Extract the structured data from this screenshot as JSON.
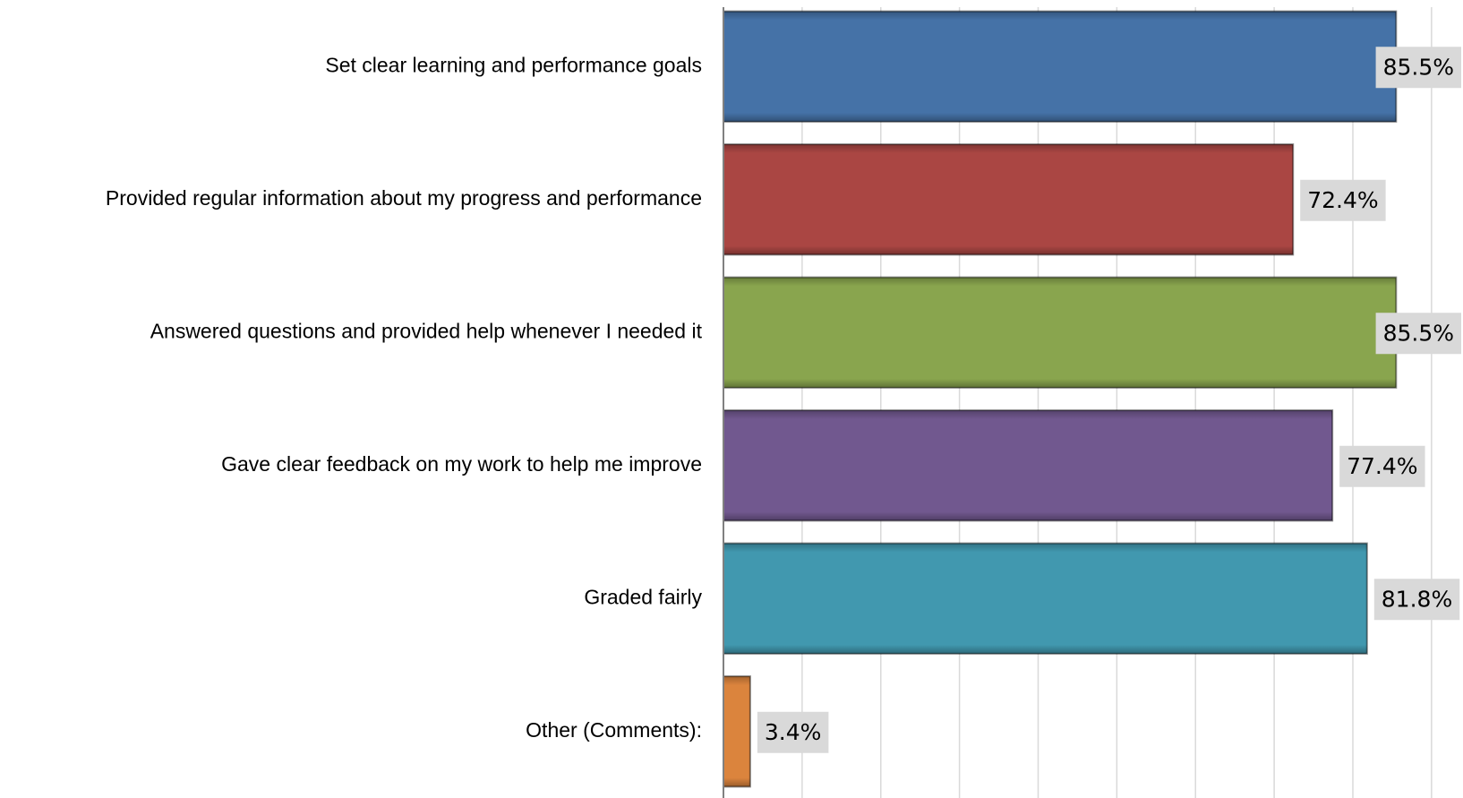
{
  "chart_data": {
    "type": "hbar",
    "categories": [
      "Set clear learning and performance goals",
      "Provided regular information about my progress and performance",
      "Answered questions and provided help whenever I needed it",
      "Gave clear feedback on my work to help me improve",
      "Graded fairly",
      "Other (Comments):"
    ],
    "values": [
      85.5,
      72.4,
      85.5,
      77.4,
      81.8,
      3.4
    ],
    "value_labels": [
      "85.5%",
      "72.4%",
      "85.5%",
      "77.4%",
      "81.8%",
      "3.4%"
    ],
    "colors": [
      "#4572a7",
      "#aa4643",
      "#89a54e",
      "#71588f",
      "#4198af",
      "#db843d"
    ],
    "xlim": [
      0,
      94
    ],
    "xticks": [
      10,
      20,
      30,
      40,
      50,
      60,
      70,
      80,
      90
    ],
    "grid": true
  }
}
